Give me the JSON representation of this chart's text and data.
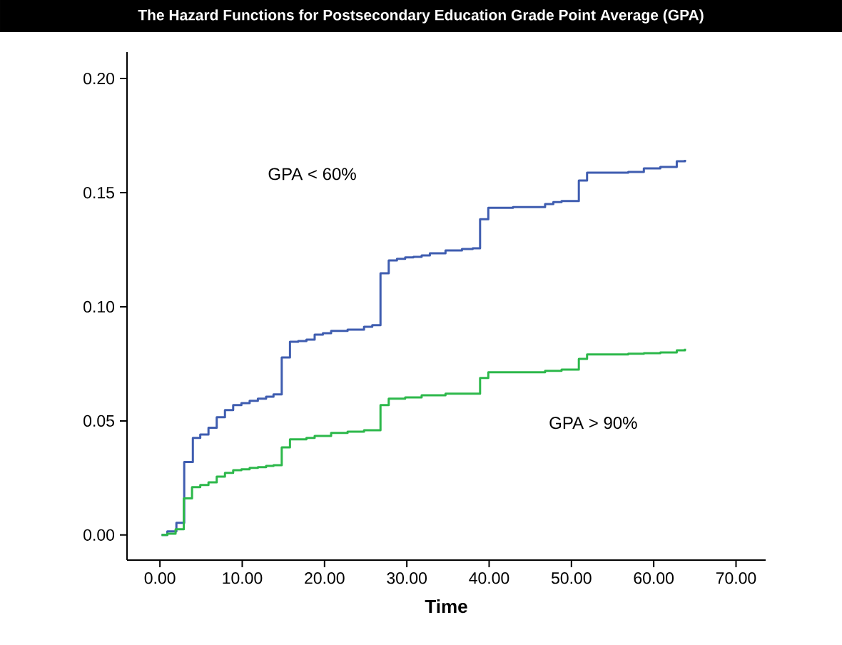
{
  "chart_data": {
    "type": "step",
    "title": "The Hazard Functions for Postsecondary Education Grade Point Average (GPA)",
    "xlabel": "Time",
    "xlim": [
      -4.0,
      73.6
    ],
    "ylim": [
      -0.011,
      0.2116
    ],
    "xticks": [
      {
        "value": 0,
        "label": "0.00"
      },
      {
        "value": 10,
        "label": "10.00"
      },
      {
        "value": 20,
        "label": "20.00"
      },
      {
        "value": 30,
        "label": "30.00"
      },
      {
        "value": 40,
        "label": "40.00"
      },
      {
        "value": 50,
        "label": "50.00"
      },
      {
        "value": 60,
        "label": "60.00"
      },
      {
        "value": 70,
        "label": "70.00"
      }
    ],
    "yticks": [
      {
        "value": 0,
        "label": "0.00"
      },
      {
        "value": 0.05,
        "label": "0.05"
      },
      {
        "value": 0.1,
        "label": "0.10"
      },
      {
        "value": 0.15,
        "label": "0.15"
      },
      {
        "value": 0.2,
        "label": "0.20"
      }
    ],
    "grid": false,
    "marker": "none",
    "line_style": "solid",
    "annotations": [
      "GPA < 60%",
      "GPA > 90%"
    ],
    "series": [
      {
        "color": "#3f5db0",
        "x": [
          0.2,
          0.9,
          2.0,
          2.95,
          4.0,
          4.9,
          5.9,
          6.9,
          7.9,
          8.9,
          9.9,
          10.9,
          11.9,
          12.9,
          13.8,
          14.8,
          15.8,
          16.8,
          17.8,
          18.8,
          19.8,
          20.8,
          22.8,
          24.8,
          25.8,
          26.8,
          27.8,
          28.8,
          29.8,
          30.8,
          31.8,
          32.8,
          34.7,
          36.7,
          38.0,
          38.9,
          39.9,
          42.9,
          46.8,
          47.8,
          48.8,
          50.9,
          51.9,
          56.9,
          58.8,
          60.8,
          62.8,
          63.8
        ],
        "values": [
          0,
          0.0016,
          0.0053,
          0.032,
          0.0425,
          0.044,
          0.047,
          0.0516,
          0.0547,
          0.0569,
          0.0578,
          0.0588,
          0.0597,
          0.0606,
          0.0616,
          0.0778,
          0.0847,
          0.085,
          0.0856,
          0.0878,
          0.0884,
          0.0894,
          0.09,
          0.0912,
          0.0919,
          0.1147,
          0.1203,
          0.121,
          0.1216,
          0.1219,
          0.1225,
          0.1234,
          0.1247,
          0.1253,
          0.1256,
          0.1384,
          0.1434,
          0.1437,
          0.145,
          0.1459,
          0.1463,
          0.1553,
          0.1588,
          0.1591,
          0.1606,
          0.1613,
          0.1638,
          0.1644
        ]
      },
      {
        "color": "#2db84b",
        "x": [
          0.2,
          0.9,
          1.9,
          2.9,
          3.9,
          4.9,
          5.9,
          6.9,
          7.9,
          8.9,
          9.9,
          10.9,
          11.9,
          12.9,
          13.8,
          14.8,
          15.8,
          17.8,
          18.8,
          20.8,
          22.8,
          24.8,
          26.8,
          27.8,
          29.8,
          31.8,
          34.7,
          38.9,
          39.9,
          46.8,
          48.8,
          50.9,
          51.9,
          56.9,
          58.8,
          60.8,
          62.8,
          63.8
        ],
        "values": [
          0,
          0.0006,
          0.0025,
          0.016,
          0.021,
          0.0219,
          0.0231,
          0.0256,
          0.0272,
          0.0284,
          0.0288,
          0.0294,
          0.0297,
          0.0303,
          0.0306,
          0.0384,
          0.0419,
          0.0425,
          0.0434,
          0.0447,
          0.0453,
          0.0459,
          0.0569,
          0.0597,
          0.0603,
          0.0612,
          0.0619,
          0.0688,
          0.0713,
          0.0719,
          0.0725,
          0.0772,
          0.0791,
          0.0794,
          0.0797,
          0.08,
          0.0809,
          0.0816
        ]
      }
    ]
  }
}
